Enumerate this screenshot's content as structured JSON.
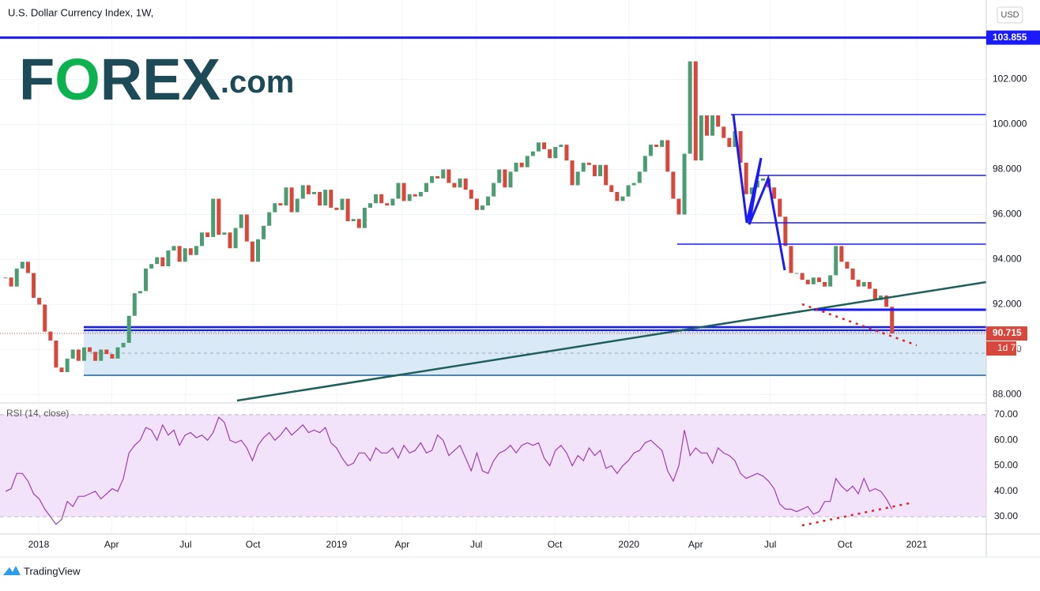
{
  "logo": [
    "F",
    "O",
    "REX",
    ".com"
  ],
  "footer": "TradingView",
  "chart_data": [
    {
      "type": "candlestick",
      "title": "U.S. Dollar Currency Index, 1W,",
      "currency": "USD",
      "up_color": "#4a9d72",
      "down_color": "#d8473b",
      "close": [
        93.2,
        92.8,
        93.6,
        93.9,
        93.4,
        92.3,
        92.0,
        90.8,
        90.4,
        89.2,
        89.0,
        89.6,
        90.0,
        89.5,
        90.1,
        89.9,
        89.5,
        90.0,
        89.8,
        89.6,
        90.1,
        90.3,
        91.5,
        92.5,
        92.6,
        93.6,
        93.8,
        94.1,
        93.7,
        94.4,
        94.6,
        93.9,
        94.5,
        94.2,
        94.6,
        95.2,
        95.0,
        96.7,
        95.1,
        95.2,
        94.5,
        95.4,
        96.0,
        94.8,
        93.9,
        94.9,
        95.5,
        96.1,
        96.5,
        96.4,
        97.2,
        96.1,
        96.7,
        97.3,
        96.9,
        97.0,
        96.4,
        97.1,
        96.3,
        96.2,
        96.7,
        95.7,
        95.8,
        95.4,
        96.3,
        96.5,
        96.9,
        96.5,
        96.4,
        96.7,
        97.4,
        96.6,
        96.9,
        96.8,
        97.0,
        97.4,
        97.7,
        97.6,
        98.0,
        97.4,
        97.2,
        97.6,
        97.1,
        96.7,
        96.2,
        96.4,
        96.8,
        97.4,
        98.0,
        97.2,
        97.9,
        98.3,
        98.1,
        98.6,
        98.8,
        99.2,
        98.9,
        98.5,
        99.0,
        99.1,
        98.4,
        97.3,
        97.9,
        98.3,
        98.2,
        97.7,
        98.2,
        97.3,
        97.0,
        96.6,
        96.8,
        97.3,
        97.4,
        97.9,
        98.6,
        99.1,
        99.0,
        99.3,
        97.9,
        96.7,
        96.0,
        98.7,
        102.8,
        98.4,
        100.4,
        99.5,
        100.4,
        99.9,
        99.4,
        99.0,
        99.7,
        98.3,
        96.9,
        97.2,
        97.5,
        97.6,
        97.2,
        96.7,
        95.9,
        94.6,
        93.4,
        93.4,
        93.1,
        92.9,
        93.2,
        93.0,
        92.8,
        93.3,
        94.6,
        93.9,
        93.6,
        93.1,
        92.8,
        93.0,
        92.7,
        92.2,
        92.4,
        91.9,
        90.715
      ],
      "xlim": [
        -0.99,
        174.8
      ],
      "xticks": [
        {
          "value": 5.9,
          "label": "2018"
        },
        {
          "value": 18.9,
          "label": "Apr"
        },
        {
          "value": 32.1,
          "label": "Jul"
        },
        {
          "value": 44.1,
          "label": "Oct"
        },
        {
          "value": 59.0,
          "label": "2019"
        },
        {
          "value": 70.7,
          "label": "Apr"
        },
        {
          "value": 83.9,
          "label": "Jul"
        },
        {
          "value": 97.9,
          "label": "Oct"
        },
        {
          "value": 111.1,
          "label": "2020"
        },
        {
          "value": 123.0,
          "label": "Apr"
        },
        {
          "value": 136.3,
          "label": "Jul"
        },
        {
          "value": 149.6,
          "label": "Oct"
        },
        {
          "value": 162.4,
          "label": "2021"
        }
      ],
      "ylim": [
        87.7,
        105.35
      ],
      "yticks": [
        {
          "value": 88,
          "label": "88.000"
        },
        {
          "value": 90,
          "label": "90.000"
        },
        {
          "value": 92,
          "label": "92.000"
        },
        {
          "value": 94,
          "label": "94.000"
        },
        {
          "value": 96,
          "label": "96.000"
        },
        {
          "value": 98,
          "label": "98.000"
        },
        {
          "value": 100,
          "label": "100.000"
        },
        {
          "value": 102,
          "label": "102.000"
        }
      ],
      "level": {
        "value": 103.855,
        "label": "103.855",
        "color": "#1a1aff"
      },
      "last": {
        "value": 90.715,
        "label": "90.715",
        "color": "#d8473b"
      },
      "countdown": "1d 7h",
      "grid": true
    },
    {
      "type": "line",
      "title": "RSI (14, close)",
      "color": "#9b3fb5",
      "band_color": "#f3e3fa",
      "values": [
        40,
        41,
        47,
        47,
        44,
        39,
        37,
        33,
        30,
        27,
        29,
        36,
        34,
        38,
        38,
        39,
        40,
        37,
        39,
        41,
        40,
        45,
        55,
        58,
        60,
        65,
        64,
        60,
        66,
        62,
        64,
        58,
        62,
        63,
        61,
        62,
        60,
        63,
        69,
        67,
        60,
        59,
        60,
        57,
        52,
        58,
        61,
        63,
        60,
        62,
        65,
        62,
        64,
        66,
        63,
        64,
        63,
        65,
        59,
        57,
        53,
        50,
        51,
        55,
        55,
        52,
        57,
        55,
        55,
        57,
        53,
        58,
        55,
        56,
        59,
        55,
        56,
        62,
        60,
        54,
        56,
        58,
        53,
        48,
        55,
        48,
        47,
        52,
        55,
        56,
        58,
        55,
        58,
        59,
        58,
        59,
        53,
        50,
        56,
        58,
        55,
        50,
        54,
        52,
        57,
        54,
        56,
        49,
        50,
        47,
        50,
        52,
        55,
        56,
        59,
        60,
        58,
        56,
        48,
        44,
        50,
        64,
        54,
        57,
        55,
        55,
        51,
        57,
        55,
        54,
        52,
        47,
        45,
        46,
        47,
        46,
        44,
        41,
        35,
        33,
        33,
        32,
        33,
        34,
        31,
        32,
        36,
        36,
        45,
        42,
        40,
        42,
        39,
        45,
        40,
        41,
        40,
        37,
        33
      ],
      "ylim": [
        23.2,
        74.0
      ],
      "yticks": [
        {
          "value": 30,
          "label": "30.00"
        },
        {
          "value": 40,
          "label": "40.00"
        },
        {
          "value": 50,
          "label": "50.00"
        },
        {
          "value": 60,
          "label": "60.00"
        },
        {
          "value": 70,
          "label": "70.00"
        }
      ]
    }
  ]
}
